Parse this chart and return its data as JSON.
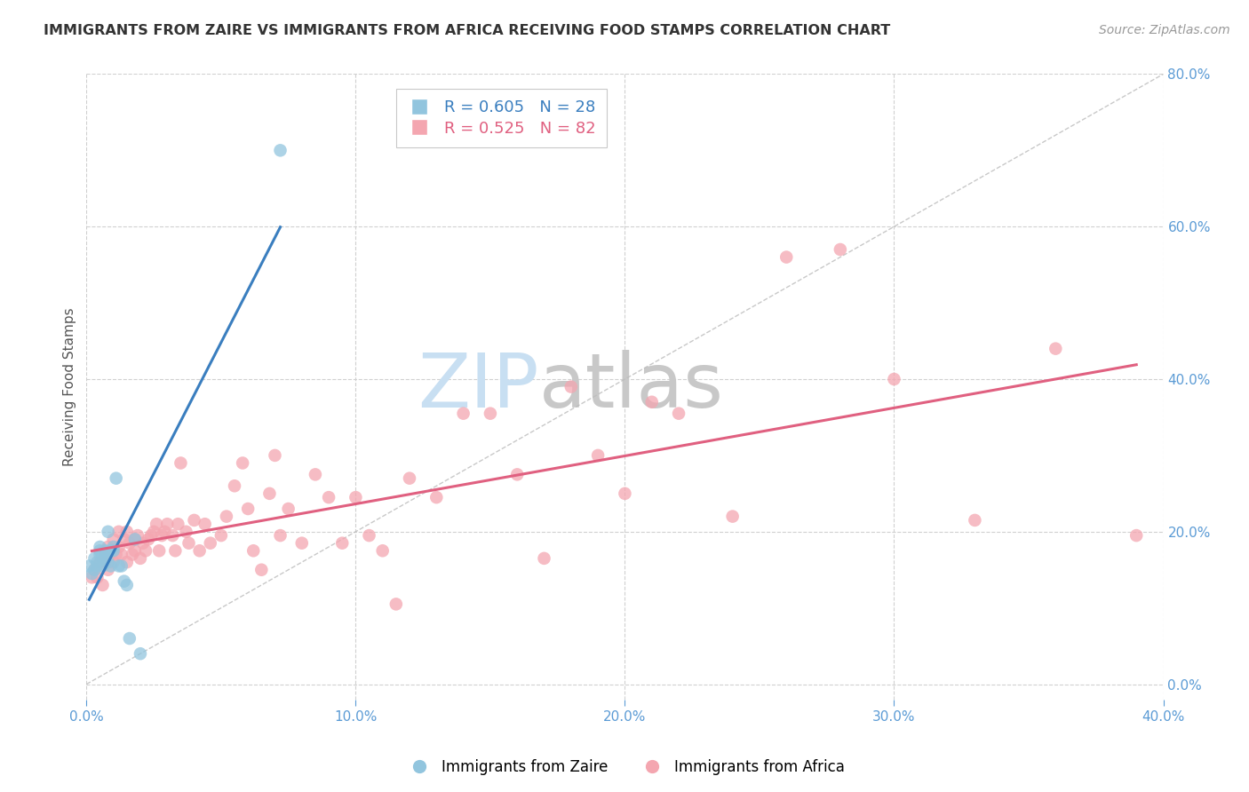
{
  "title": "IMMIGRANTS FROM ZAIRE VS IMMIGRANTS FROM AFRICA RECEIVING FOOD STAMPS CORRELATION CHART",
  "source": "Source: ZipAtlas.com",
  "ylabel": "Receiving Food Stamps",
  "legend_zaire": "Immigrants from Zaire",
  "legend_africa": "Immigrants from Africa",
  "R_zaire": 0.605,
  "N_zaire": 28,
  "R_africa": 0.525,
  "N_africa": 82,
  "xlim": [
    0.0,
    0.4
  ],
  "ylim": [
    -0.02,
    0.8
  ],
  "xticks": [
    0.0,
    0.1,
    0.2,
    0.3,
    0.4
  ],
  "yticks_right": [
    0.0,
    0.2,
    0.4,
    0.6,
    0.8
  ],
  "color_zaire": "#92c5de",
  "color_africa": "#f4a6b0",
  "color_zaire_line": "#3a7ebf",
  "color_africa_line": "#e06080",
  "color_diag": "#bbbbbb",
  "color_axis_right": "#5b9bd5",
  "color_axis_bottom": "#5b9bd5",
  "watermark_zip": "ZIP",
  "watermark_atlas": "atlas",
  "watermark_color_zip": "#c8dff2",
  "watermark_color_atlas": "#c8c8c8",
  "background_color": "#ffffff",
  "zaire_x": [
    0.001,
    0.002,
    0.003,
    0.003,
    0.004,
    0.004,
    0.005,
    0.005,
    0.005,
    0.006,
    0.006,
    0.007,
    0.007,
    0.008,
    0.008,
    0.009,
    0.009,
    0.01,
    0.01,
    0.011,
    0.012,
    0.013,
    0.014,
    0.015,
    0.016,
    0.018,
    0.02,
    0.072
  ],
  "zaire_y": [
    0.155,
    0.145,
    0.15,
    0.165,
    0.16,
    0.155,
    0.17,
    0.175,
    0.18,
    0.155,
    0.17,
    0.165,
    0.175,
    0.16,
    0.2,
    0.155,
    0.175,
    0.18,
    0.175,
    0.27,
    0.155,
    0.155,
    0.135,
    0.13,
    0.06,
    0.19,
    0.04,
    0.7
  ],
  "africa_x": [
    0.002,
    0.003,
    0.004,
    0.005,
    0.006,
    0.007,
    0.007,
    0.008,
    0.008,
    0.009,
    0.01,
    0.01,
    0.011,
    0.012,
    0.012,
    0.013,
    0.014,
    0.015,
    0.015,
    0.016,
    0.017,
    0.018,
    0.018,
    0.019,
    0.02,
    0.021,
    0.022,
    0.023,
    0.024,
    0.025,
    0.026,
    0.027,
    0.028,
    0.029,
    0.03,
    0.032,
    0.033,
    0.034,
    0.035,
    0.037,
    0.038,
    0.04,
    0.042,
    0.044,
    0.046,
    0.05,
    0.052,
    0.055,
    0.058,
    0.06,
    0.062,
    0.065,
    0.068,
    0.07,
    0.072,
    0.075,
    0.08,
    0.085,
    0.09,
    0.095,
    0.1,
    0.105,
    0.11,
    0.115,
    0.12,
    0.13,
    0.14,
    0.15,
    0.16,
    0.17,
    0.18,
    0.19,
    0.2,
    0.21,
    0.22,
    0.24,
    0.26,
    0.28,
    0.3,
    0.33,
    0.36,
    0.39
  ],
  "africa_y": [
    0.14,
    0.15,
    0.14,
    0.16,
    0.13,
    0.16,
    0.17,
    0.15,
    0.18,
    0.17,
    0.16,
    0.19,
    0.17,
    0.18,
    0.2,
    0.17,
    0.19,
    0.16,
    0.2,
    0.185,
    0.17,
    0.19,
    0.175,
    0.195,
    0.165,
    0.185,
    0.175,
    0.19,
    0.195,
    0.2,
    0.21,
    0.175,
    0.195,
    0.2,
    0.21,
    0.195,
    0.175,
    0.21,
    0.29,
    0.2,
    0.185,
    0.215,
    0.175,
    0.21,
    0.185,
    0.195,
    0.22,
    0.26,
    0.29,
    0.23,
    0.175,
    0.15,
    0.25,
    0.3,
    0.195,
    0.23,
    0.185,
    0.275,
    0.245,
    0.185,
    0.245,
    0.195,
    0.175,
    0.105,
    0.27,
    0.245,
    0.355,
    0.355,
    0.275,
    0.165,
    0.39,
    0.3,
    0.25,
    0.37,
    0.355,
    0.22,
    0.56,
    0.57,
    0.4,
    0.215,
    0.44,
    0.195
  ]
}
